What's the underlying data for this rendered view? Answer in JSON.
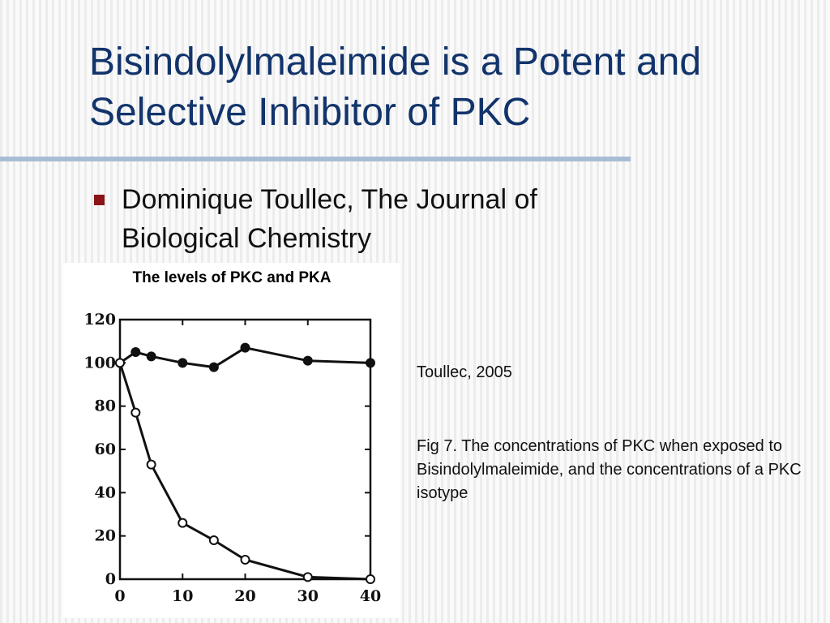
{
  "slide": {
    "title": "Bisindolylmaleimide is a Potent and Selective Inhibitor of PKC",
    "bullet": "Dominique Toullec, The Journal of Biological Chemistry",
    "citation": "Toullec, 2005",
    "description": "Fig 7. The concentrations of PKC when exposed to Bisindolylmaleimide, and the concentrations of a PKC isotype"
  },
  "colors": {
    "title": "#12346b",
    "rule": "#a9bcd6",
    "bullet_marker": "#8b1416",
    "plot_line": "#111111"
  },
  "chart_data": {
    "type": "line",
    "title": "The levels of PKC and PKA",
    "xlabel": "",
    "ylabel": "",
    "xlim": [
      0,
      40
    ],
    "ylim": [
      0,
      120
    ],
    "xticks": [
      "0",
      "10",
      "20",
      "30",
      "40"
    ],
    "yticks": [
      "0",
      "20",
      "40",
      "60",
      "80",
      "100",
      "120"
    ],
    "grid": false,
    "series": [
      {
        "marker": "filled-circle",
        "x": [
          0,
          2.5,
          5,
          10,
          15,
          20,
          30,
          40
        ],
        "y": [
          100,
          105,
          103,
          100,
          98,
          107,
          101,
          100
        ]
      },
      {
        "marker": "open-circle",
        "x": [
          0,
          2.5,
          5,
          10,
          15,
          20,
          30,
          40
        ],
        "y": [
          100,
          77,
          53,
          26,
          18,
          9,
          1,
          0
        ]
      }
    ]
  }
}
